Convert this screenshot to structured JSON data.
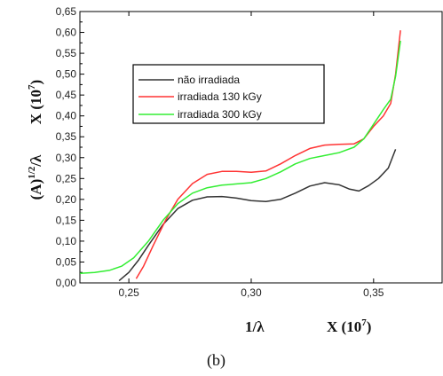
{
  "chart_data": {
    "type": "line",
    "title": "",
    "caption": "(b)",
    "xlabel": {
      "left": "1/λ",
      "right_main": "X (10",
      "right_sup": "7",
      "right_close": ")"
    },
    "ylabel": {
      "top_main": "X (10",
      "top_sup": "7",
      "top_close": ")",
      "bottom_main": "(A)",
      "bottom_sup": "1/2",
      "bottom_tail": "/λ"
    },
    "xlim": [
      0.23,
      0.378
    ],
    "ylim": [
      0,
      0.65
    ],
    "x_ticks": [
      0.25,
      0.3,
      0.35
    ],
    "x_tick_labels": [
      "0,25",
      "0,30",
      "0,35"
    ],
    "y_ticks": [
      0,
      0.05,
      0.1,
      0.15,
      0.2,
      0.25,
      0.3,
      0.35,
      0.4,
      0.45,
      0.5,
      0.55,
      0.6,
      0.65
    ],
    "y_tick_labels": [
      "0,00",
      "0,05",
      "0,10",
      "0,15",
      "0,20",
      "0,25",
      "0,30",
      "0,35",
      "0,40",
      "0,45",
      "0,50",
      "0,55",
      "0,60",
      "0,65"
    ],
    "grid": false,
    "legend_position": "upper-left-center",
    "series": [
      {
        "name": "não irradiada",
        "color": "#333333",
        "points": [
          [
            0.246,
            0.005
          ],
          [
            0.25,
            0.025
          ],
          [
            0.254,
            0.055
          ],
          [
            0.258,
            0.09
          ],
          [
            0.264,
            0.14
          ],
          [
            0.27,
            0.178
          ],
          [
            0.276,
            0.198
          ],
          [
            0.282,
            0.206
          ],
          [
            0.288,
            0.207
          ],
          [
            0.294,
            0.203
          ],
          [
            0.3,
            0.197
          ],
          [
            0.306,
            0.195
          ],
          [
            0.312,
            0.2
          ],
          [
            0.318,
            0.215
          ],
          [
            0.324,
            0.232
          ],
          [
            0.33,
            0.24
          ],
          [
            0.336,
            0.235
          ],
          [
            0.34,
            0.225
          ],
          [
            0.344,
            0.22
          ],
          [
            0.348,
            0.233
          ],
          [
            0.352,
            0.25
          ],
          [
            0.356,
            0.275
          ],
          [
            0.359,
            0.32
          ]
        ]
      },
      {
        "name": "irradiada 130 kGy",
        "color": "#ff3333",
        "points": [
          [
            0.253,
            0.01
          ],
          [
            0.256,
            0.04
          ],
          [
            0.26,
            0.09
          ],
          [
            0.265,
            0.15
          ],
          [
            0.27,
            0.2
          ],
          [
            0.276,
            0.238
          ],
          [
            0.282,
            0.26
          ],
          [
            0.288,
            0.267
          ],
          [
            0.294,
            0.267
          ],
          [
            0.3,
            0.265
          ],
          [
            0.306,
            0.268
          ],
          [
            0.312,
            0.285
          ],
          [
            0.318,
            0.305
          ],
          [
            0.324,
            0.322
          ],
          [
            0.33,
            0.33
          ],
          [
            0.336,
            0.332
          ],
          [
            0.342,
            0.333
          ],
          [
            0.346,
            0.345
          ],
          [
            0.35,
            0.375
          ],
          [
            0.354,
            0.4
          ],
          [
            0.357,
            0.43
          ],
          [
            0.359,
            0.5
          ],
          [
            0.361,
            0.605
          ]
        ]
      },
      {
        "name": "irradiada 300 kGy",
        "color": "#33ee33",
        "points": [
          [
            0.23,
            0.023
          ],
          [
            0.236,
            0.025
          ],
          [
            0.242,
            0.03
          ],
          [
            0.247,
            0.04
          ],
          [
            0.252,
            0.06
          ],
          [
            0.258,
            0.1
          ],
          [
            0.264,
            0.15
          ],
          [
            0.27,
            0.19
          ],
          [
            0.276,
            0.215
          ],
          [
            0.282,
            0.228
          ],
          [
            0.288,
            0.234
          ],
          [
            0.294,
            0.237
          ],
          [
            0.3,
            0.24
          ],
          [
            0.306,
            0.25
          ],
          [
            0.312,
            0.266
          ],
          [
            0.318,
            0.285
          ],
          [
            0.324,
            0.298
          ],
          [
            0.33,
            0.305
          ],
          [
            0.336,
            0.312
          ],
          [
            0.342,
            0.325
          ],
          [
            0.346,
            0.345
          ],
          [
            0.35,
            0.38
          ],
          [
            0.354,
            0.415
          ],
          [
            0.357,
            0.44
          ],
          [
            0.359,
            0.495
          ],
          [
            0.361,
            0.58
          ]
        ]
      }
    ]
  }
}
